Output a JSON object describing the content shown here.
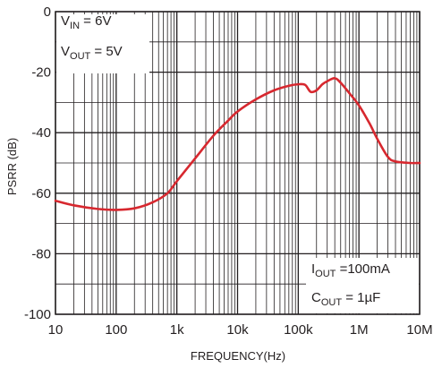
{
  "chart_data": {
    "type": "line",
    "title": "",
    "xlabel": "FREQUENCY(Hz)",
    "ylabel": "PSRR (dB)",
    "x_scale": "log",
    "xlim": [
      10,
      10000000
    ],
    "ylim": [
      -100,
      0
    ],
    "grid": true,
    "x_ticks": [
      {
        "value": 10,
        "label": "10"
      },
      {
        "value": 100,
        "label": "100"
      },
      {
        "value": 1000,
        "label": "1k"
      },
      {
        "value": 10000,
        "label": "10k"
      },
      {
        "value": 100000,
        "label": "100k"
      },
      {
        "value": 1000000,
        "label": "1M"
      },
      {
        "value": 10000000,
        "label": "10M"
      }
    ],
    "y_ticks": [
      {
        "value": 0,
        "label": "0"
      },
      {
        "value": -20,
        "label": "-20"
      },
      {
        "value": -40,
        "label": "-40"
      },
      {
        "value": -60,
        "label": "-60"
      },
      {
        "value": -80,
        "label": "-80"
      },
      {
        "value": -100,
        "label": "-100"
      }
    ],
    "series": [
      {
        "color": "#d7282f",
        "x": [
          10,
          20,
          50,
          100,
          200,
          400,
          700,
          1000,
          2000,
          4000,
          7000,
          10000,
          20000,
          40000,
          70000,
          100000,
          130000,
          160000,
          200000,
          250000,
          300000,
          400000,
          500000,
          700000,
          1000000,
          1500000,
          2000000,
          3000000,
          4000000,
          7000000,
          10000000
        ],
        "y": [
          -62.5,
          -64,
          -65.2,
          -65.5,
          -65,
          -63,
          -60,
          -56,
          -48.5,
          -41,
          -36,
          -33,
          -29,
          -26,
          -24.5,
          -24,
          -24.2,
          -26.5,
          -26,
          -24,
          -23,
          -22,
          -23.5,
          -27,
          -31,
          -37,
          -42,
          -48,
          -49.5,
          -50,
          -50
        ]
      }
    ],
    "annotations": {
      "vin": {
        "main": "V",
        "sub": "IN",
        "rest": " = 6V"
      },
      "vout": {
        "main": "V",
        "sub": "OUT",
        "rest": " = 5V"
      },
      "iout": {
        "main": "I",
        "sub": "OUT",
        "rest": " =100mA"
      },
      "cout": {
        "main": "C",
        "sub": "OUT",
        "rest": " = 1µF"
      }
    }
  }
}
